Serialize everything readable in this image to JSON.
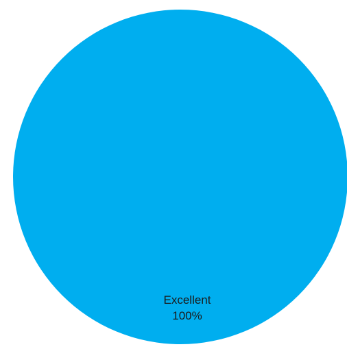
{
  "chart_data": {
    "type": "pie",
    "title": "",
    "slices": [
      {
        "label": "Excellent",
        "value": 100,
        "percent_label": "100%",
        "color": "#00AEEF"
      }
    ],
    "legend": "none"
  }
}
